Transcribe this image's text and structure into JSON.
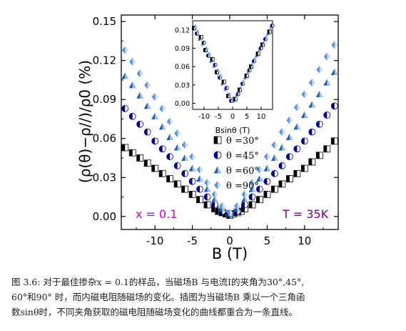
{
  "caption": {
    "line1": "图 3.6: 对于最佳掺杂x = 0.1的样品，当磁场B 与电流I的夹角为30°,45°,",
    "line2": "60°和90° 时，而内磁电阻随磁场的变化。插图为当磁场B 乘以一个三角函",
    "line3": "数sinθ时，不同夹角获取的磁电阻随磁场变化的曲线都重合为一条直线。"
  },
  "chart_data": [
    {
      "type": "scatter",
      "xlabel": "B (T)",
      "ylabel": "(ρ(θ)−ρ//)/ρ0 (%)",
      "xlim": [
        -14.5,
        14.5
      ],
      "ylim": [
        -0.01,
        0.155
      ],
      "xticks": [
        -10,
        -5,
        0,
        5,
        10
      ],
      "yticks": [
        0.0,
        0.03,
        0.06,
        0.09,
        0.12,
        0.15
      ],
      "ytick_labels": [
        "0.00",
        "0.03",
        "0.06",
        "0.09",
        "0.12",
        "0.15"
      ],
      "annotations": [
        {
          "text": "x = 0.1",
          "color": "#cc00cc",
          "position": "bottom-left"
        },
        {
          "text": "T = 35K",
          "color": "#800080",
          "position": "bottom-right"
        }
      ],
      "legend_position": "center-right",
      "series": [
        {
          "name": "θ =30°",
          "marker": "half-square",
          "color": "#000000",
          "x": [
            -14,
            -13,
            -12,
            -11,
            -10,
            -9,
            -8,
            -7,
            -6,
            -5,
            -4,
            -3,
            -2,
            -1.5,
            -1,
            -0.5,
            0,
            0.5,
            1,
            1.5,
            2,
            3,
            4,
            5,
            6,
            7,
            8,
            9,
            10,
            11,
            12,
            13,
            14
          ],
          "y": [
            0.053,
            0.049,
            0.045,
            0.041,
            0.037,
            0.033,
            0.029,
            0.025,
            0.021,
            0.017,
            0.013,
            0.009,
            0.006,
            0.004,
            0.003,
            0.002,
            0.001,
            0.002,
            0.003,
            0.004,
            0.006,
            0.009,
            0.013,
            0.017,
            0.021,
            0.025,
            0.029,
            0.033,
            0.037,
            0.042,
            0.047,
            0.052,
            0.058
          ]
        },
        {
          "name": "θ =45°",
          "marker": "half-circle",
          "color": "#00008b",
          "x": [
            -14,
            -13,
            -12,
            -11,
            -10,
            -9,
            -8,
            -7,
            -6,
            -5,
            -4,
            -3,
            -2,
            -1,
            0,
            1,
            2,
            3,
            4,
            5,
            6,
            7,
            8,
            9,
            10,
            11,
            12,
            13,
            14
          ],
          "y": [
            0.083,
            0.077,
            0.071,
            0.065,
            0.058,
            0.052,
            0.046,
            0.039,
            0.033,
            0.027,
            0.021,
            0.015,
            0.009,
            0.004,
            0.002,
            0.004,
            0.009,
            0.015,
            0.021,
            0.027,
            0.033,
            0.039,
            0.046,
            0.052,
            0.058,
            0.065,
            0.071,
            0.078,
            0.085
          ]
        },
        {
          "name": "θ =60°",
          "marker": "triangle",
          "color": "#1f5fa8",
          "x": [
            -14,
            -13,
            -12,
            -11,
            -10,
            -9,
            -8,
            -7,
            -6,
            -5,
            -4,
            -3,
            -2,
            -1,
            0,
            1,
            2,
            3,
            4,
            5,
            6,
            7,
            8,
            9,
            10,
            11,
            12,
            13,
            14
          ],
          "y": [
            0.108,
            0.101,
            0.093,
            0.085,
            0.077,
            0.069,
            0.061,
            0.053,
            0.045,
            0.037,
            0.029,
            0.021,
            0.013,
            0.006,
            0.002,
            0.006,
            0.013,
            0.021,
            0.029,
            0.037,
            0.045,
            0.053,
            0.061,
            0.069,
            0.078,
            0.086,
            0.094,
            0.103,
            0.111
          ]
        },
        {
          "name": "θ =90°",
          "marker": "diamond",
          "color": "#5b8fd6",
          "x": [
            -14,
            -13,
            -12,
            -11,
            -10,
            -9,
            -8,
            -7,
            -6,
            -5,
            -4,
            -3,
            -2,
            -1,
            0,
            1,
            2,
            3,
            4,
            5,
            6,
            7,
            8,
            9,
            10,
            11,
            12,
            13,
            14
          ],
          "y": [
            0.128,
            0.119,
            0.11,
            0.101,
            0.092,
            0.083,
            0.073,
            0.064,
            0.055,
            0.046,
            0.036,
            0.026,
            0.017,
            0.008,
            0.003,
            0.008,
            0.017,
            0.026,
            0.036,
            0.046,
            0.055,
            0.065,
            0.074,
            0.084,
            0.094,
            0.103,
            0.113,
            0.123,
            0.132
          ]
        }
      ]
    },
    {
      "type": "scatter",
      "inset": true,
      "xlabel": "Bsinθ (T)",
      "xlim": [
        -14,
        14
      ],
      "ylim": [
        -0.01,
        0.135
      ],
      "xticks": [
        -10,
        -5,
        0,
        5,
        10
      ],
      "yticks": [
        0.0,
        0.03,
        0.06,
        0.09,
        0.12
      ],
      "ytick_labels": [
        "0.00",
        "0.03",
        "0.06",
        "0.09",
        "0.12"
      ],
      "note": "all four angle series collapse onto one V-shaped curve",
      "series_x": [
        -13.5,
        -12.5,
        -11.5,
        -10.5,
        -9.5,
        -8.5,
        -7.5,
        -6.5,
        -5.5,
        -4.5,
        -3.5,
        -2.5,
        -1.5,
        -0.5,
        0.5,
        1.5,
        2.5,
        3.5,
        4.5,
        5.5,
        6.5,
        7.5,
        8.5,
        9.5,
        10.5,
        11.5,
        12.5,
        13.5
      ],
      "series_y": [
        0.123,
        0.114,
        0.105,
        0.096,
        0.087,
        0.078,
        0.069,
        0.06,
        0.051,
        0.042,
        0.032,
        0.022,
        0.012,
        0.004,
        0.004,
        0.012,
        0.022,
        0.032,
        0.042,
        0.051,
        0.06,
        0.069,
        0.078,
        0.087,
        0.096,
        0.105,
        0.114,
        0.124
      ]
    }
  ]
}
